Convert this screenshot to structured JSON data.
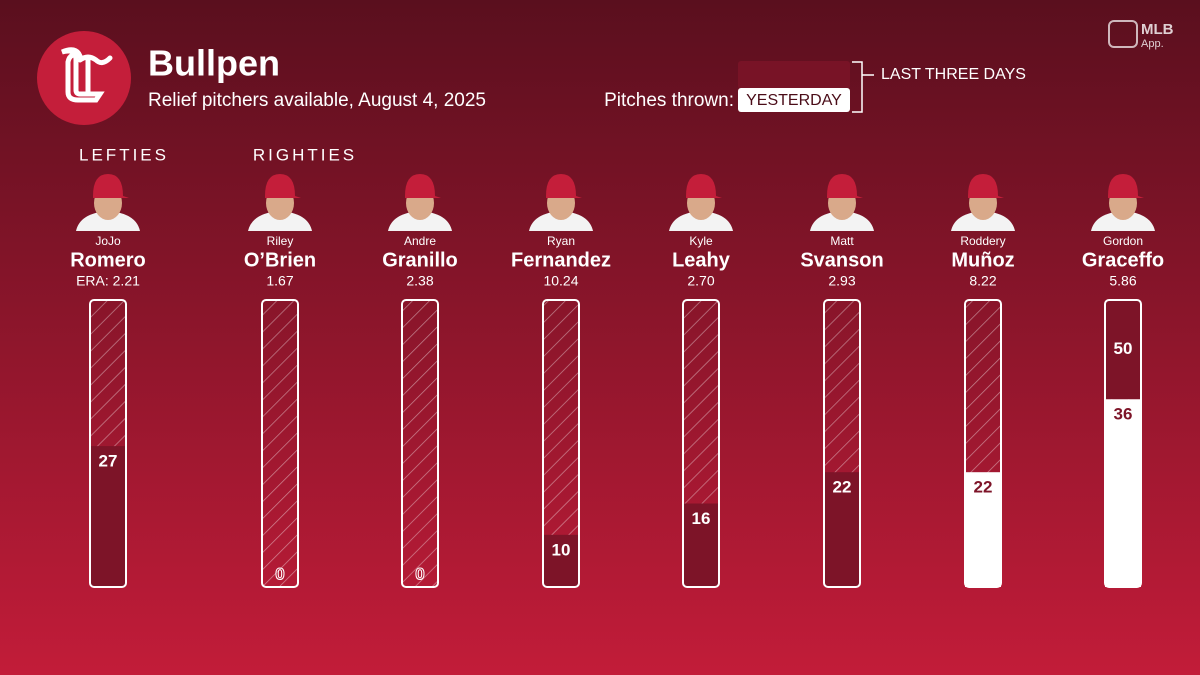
{
  "chart_data": {
    "type": "bar",
    "title": "Bullpen",
    "subtitle": "Relief pitchers available, August 4, 2025",
    "legend_label": "Pitches thrown:",
    "brand": "MLB",
    "brand_sub": "App.",
    "group_labels": [
      "LEFTIES",
      "RIGHTIES"
    ],
    "first_names": [
      "JoJo",
      "Riley",
      "Andre",
      "Ryan",
      "Kyle",
      "Matt",
      "Roddery",
      "Gordon"
    ],
    "categories": [
      "Romero",
      "O’Brien",
      "Granillo",
      "Fernandez",
      "Leahy",
      "Svanson",
      "Muñoz",
      "Graceffo"
    ],
    "era_labels": [
      "ERA: 2.21",
      "1.67",
      "2.38",
      "10.24",
      "2.70",
      "2.93",
      "8.22",
      "5.86"
    ],
    "series": [
      {
        "name": "YESTERDAY",
        "color": "#ffffff",
        "values": [
          null,
          null,
          null,
          null,
          null,
          null,
          22,
          36
        ]
      },
      {
        "name": "LAST THREE DAYS",
        "color": "#7d1428",
        "values": [
          27,
          0,
          0,
          10,
          16,
          22,
          null,
          50
        ]
      }
    ],
    "ylim": [
      0,
      55
    ]
  }
}
